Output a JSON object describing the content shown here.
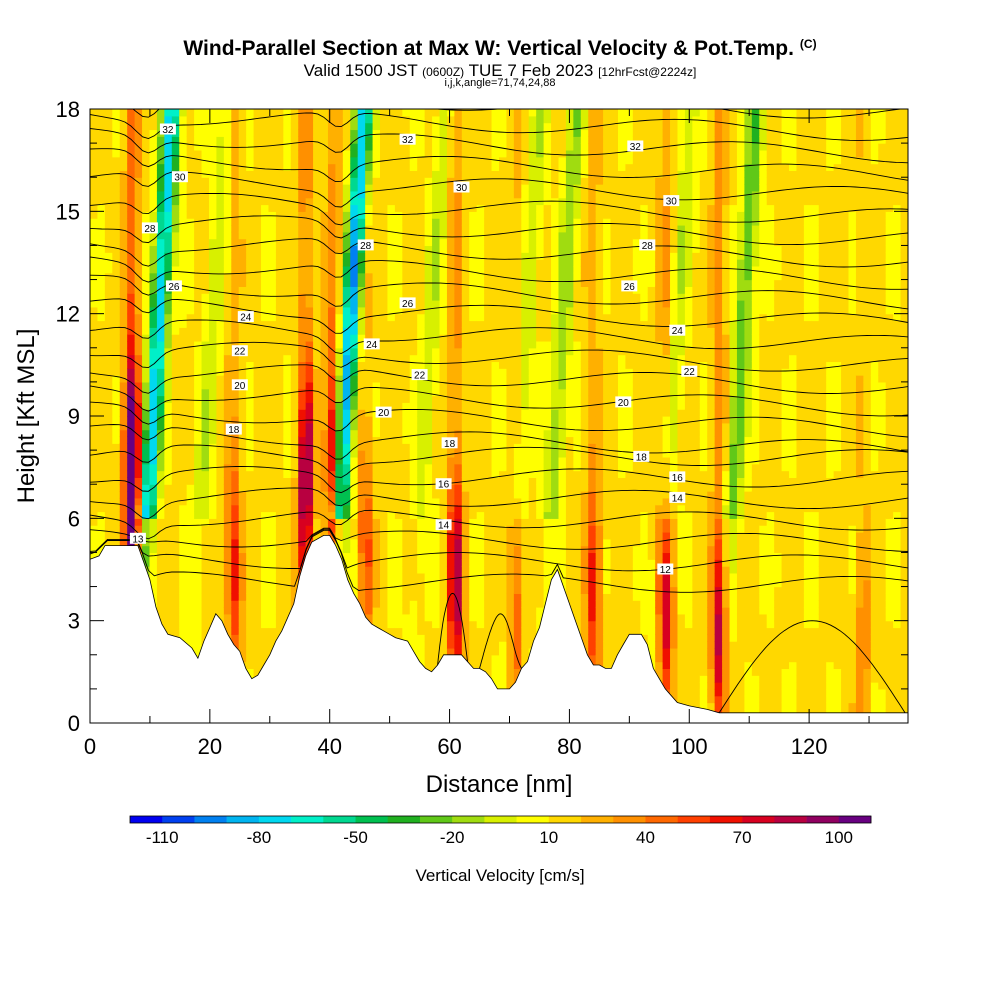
{
  "titles": {
    "main": "Wind-Parallel Section at Max W: Vertical Velocity & Pot.Temp.",
    "copyright": "(C)",
    "valid_prefix": "Valid 1500 JST",
    "valid_z": "(0600Z)",
    "valid_date": "TUE 7 Feb 2023",
    "valid_fcst": "[12hrFcst@2224z]",
    "indices": "i,j,k,angle=71,74,24,88"
  },
  "chart_data": {
    "type": "heatmap",
    "xlabel": "Distance [nm]",
    "ylabel": "Height [Kft MSL]",
    "xlim": [
      0,
      136.5
    ],
    "ylim": [
      0,
      18
    ],
    "x_ticks": [
      0,
      20,
      40,
      60,
      80,
      100,
      120
    ],
    "y_ticks": [
      0,
      3,
      6,
      9,
      12,
      15,
      18
    ],
    "colorbar": {
      "label": "Vertical Velocity [cm/s]",
      "min": -120,
      "max": 110,
      "step": 10,
      "tick_labels": [
        "-110",
        "-80",
        "-50",
        "-20",
        "10",
        "40",
        "70",
        "100"
      ],
      "colors": [
        "#0000f0",
        "#0040f0",
        "#0080f0",
        "#00b4f0",
        "#00d8f0",
        "#00f0c8",
        "#00d890",
        "#00c050",
        "#20b020",
        "#60c818",
        "#a0dc10",
        "#d8f000",
        "#ffff00",
        "#ffd800",
        "#ffb000",
        "#ff9000",
        "#ff6800",
        "#ff4000",
        "#f01000",
        "#d80020",
        "#b80040",
        "#900060",
        "#680080"
      ]
    },
    "updrafts": [
      {
        "x": 7,
        "w": 100
      },
      {
        "x": 24,
        "w": 40
      },
      {
        "x": 36,
        "w": 70
      },
      {
        "x": 40.5,
        "w": 60
      },
      {
        "x": 46,
        "w": 30
      },
      {
        "x": 61,
        "w": 60
      },
      {
        "x": 71,
        "w": 30
      },
      {
        "x": 84,
        "w": 40
      },
      {
        "x": 96,
        "w": 50
      },
      {
        "x": 105,
        "w": 60
      },
      {
        "x": 129,
        "w": 20
      }
    ],
    "downdrafts": [
      {
        "x": 9.5,
        "w": -90
      },
      {
        "x": 18.5,
        "w": -20
      },
      {
        "x": 41.5,
        "w": -100
      },
      {
        "x": 55,
        "w": -20
      },
      {
        "x": 71,
        "w": -20
      },
      {
        "x": 77,
        "w": -30
      },
      {
        "x": 96,
        "w": -20
      },
      {
        "x": 107,
        "w": -40
      }
    ],
    "theta_contours": [
      {
        "label": "12",
        "label_x": 96,
        "label_y": 4.5
      },
      {
        "label": "13",
        "label_x": 8,
        "label_y": 5.4
      },
      {
        "label": "14",
        "label_x": 59,
        "label_y": 5.8
      },
      {
        "label": "14",
        "label_x": 98,
        "label_y": 6.6
      },
      {
        "label": "16",
        "label_x": 59,
        "label_y": 7.0
      },
      {
        "label": "16",
        "label_x": 98,
        "label_y": 7.2
      },
      {
        "label": "18",
        "label_x": 24,
        "label_y": 8.6
      },
      {
        "label": "18",
        "label_x": 60,
        "label_y": 8.2
      },
      {
        "label": "18",
        "label_x": 92,
        "label_y": 7.8
      },
      {
        "label": "20",
        "label_x": 25,
        "label_y": 9.9
      },
      {
        "label": "20",
        "label_x": 49,
        "label_y": 9.1
      },
      {
        "label": "20",
        "label_x": 89,
        "label_y": 9.4
      },
      {
        "label": "22",
        "label_x": 25,
        "label_y": 10.9
      },
      {
        "label": "22",
        "label_x": 55,
        "label_y": 10.2
      },
      {
        "label": "22",
        "label_x": 100,
        "label_y": 10.3
      },
      {
        "label": "24",
        "label_x": 26,
        "label_y": 11.9
      },
      {
        "label": "24",
        "label_x": 47,
        "label_y": 11.1
      },
      {
        "label": "24",
        "label_x": 98,
        "label_y": 11.5
      },
      {
        "label": "26",
        "label_x": 14,
        "label_y": 12.8
      },
      {
        "label": "26",
        "label_x": 53,
        "label_y": 12.3
      },
      {
        "label": "26",
        "label_x": 90,
        "label_y": 12.8
      },
      {
        "label": "28",
        "label_x": 10,
        "label_y": 14.5
      },
      {
        "label": "28",
        "label_x": 46,
        "label_y": 14.0
      },
      {
        "label": "28",
        "label_x": 93,
        "label_y": 14.0
      },
      {
        "label": "30",
        "label_x": 15,
        "label_y": 16.0
      },
      {
        "label": "30",
        "label_x": 62,
        "label_y": 15.7
      },
      {
        "label": "30",
        "label_x": 97,
        "label_y": 15.3
      },
      {
        "label": "32",
        "label_x": 13,
        "label_y": 17.4
      },
      {
        "label": "32",
        "label_x": 53,
        "label_y": 17.1
      },
      {
        "label": "32",
        "label_x": 91,
        "label_y": 16.9
      }
    ],
    "terrain": [
      [
        0,
        4.8
      ],
      [
        1.5,
        4.9
      ],
      [
        2.5,
        5.2
      ],
      [
        8,
        5.2
      ],
      [
        10,
        4.2
      ],
      [
        11,
        3.4
      ],
      [
        12,
        2.9
      ],
      [
        13,
        2.6
      ],
      [
        15,
        2.5
      ],
      [
        17,
        2.2
      ],
      [
        18,
        1.9
      ],
      [
        19,
        2.4
      ],
      [
        20,
        2.8
      ],
      [
        21,
        3.2
      ],
      [
        22,
        3.0
      ],
      [
        23,
        2.6
      ],
      [
        24,
        2.3
      ],
      [
        25,
        2.1
      ],
      [
        26,
        1.6
      ],
      [
        27,
        1.3
      ],
      [
        28,
        1.4
      ],
      [
        29,
        1.7
      ],
      [
        30,
        2.0
      ],
      [
        31,
        2.4
      ],
      [
        32,
        2.7
      ],
      [
        33,
        3.1
      ],
      [
        34,
        3.5
      ],
      [
        35,
        4.3
      ],
      [
        36,
        4.9
      ],
      [
        37,
        5.3
      ],
      [
        39,
        5.5
      ],
      [
        40,
        5.5
      ],
      [
        41,
        5.2
      ],
      [
        42,
        4.8
      ],
      [
        43,
        4.2
      ],
      [
        44,
        3.8
      ],
      [
        45,
        3.5
      ],
      [
        46,
        3.1
      ],
      [
        47,
        2.9
      ],
      [
        48,
        2.8
      ],
      [
        50,
        2.6
      ],
      [
        51,
        2.5
      ],
      [
        53,
        2.4
      ],
      [
        54,
        2.1
      ],
      [
        55,
        1.8
      ],
      [
        56,
        1.6
      ],
      [
        57,
        1.5
      ],
      [
        58,
        1.7
      ],
      [
        59,
        2.0
      ],
      [
        62,
        2.0
      ],
      [
        63,
        1.8
      ],
      [
        64,
        1.6
      ],
      [
        65,
        1.6
      ],
      [
        66,
        1.5
      ],
      [
        67,
        1.3
      ],
      [
        68,
        1.0
      ],
      [
        70,
        1.0
      ],
      [
        71,
        1.2
      ],
      [
        72,
        1.6
      ],
      [
        73,
        1.8
      ],
      [
        74,
        2.4
      ],
      [
        75,
        2.8
      ],
      [
        76,
        3.5
      ],
      [
        77,
        4.2
      ],
      [
        78,
        4.5
      ],
      [
        79,
        4.0
      ],
      [
        80,
        3.5
      ],
      [
        81,
        3.0
      ],
      [
        82,
        2.5
      ],
      [
        83,
        2.0
      ],
      [
        84,
        1.7
      ],
      [
        85,
        1.7
      ],
      [
        86,
        1.6
      ],
      [
        87,
        1.6
      ],
      [
        88,
        2.0
      ],
      [
        89,
        2.3
      ],
      [
        90,
        2.6
      ],
      [
        92,
        2.6
      ],
      [
        93,
        2.3
      ],
      [
        94,
        1.6
      ],
      [
        95,
        1.3
      ],
      [
        96,
        1.0
      ],
      [
        97,
        0.8
      ],
      [
        98,
        0.6
      ],
      [
        100,
        0.5
      ],
      [
        103,
        0.4
      ],
      [
        105,
        0.3
      ],
      [
        136.5,
        0.3
      ]
    ]
  }
}
